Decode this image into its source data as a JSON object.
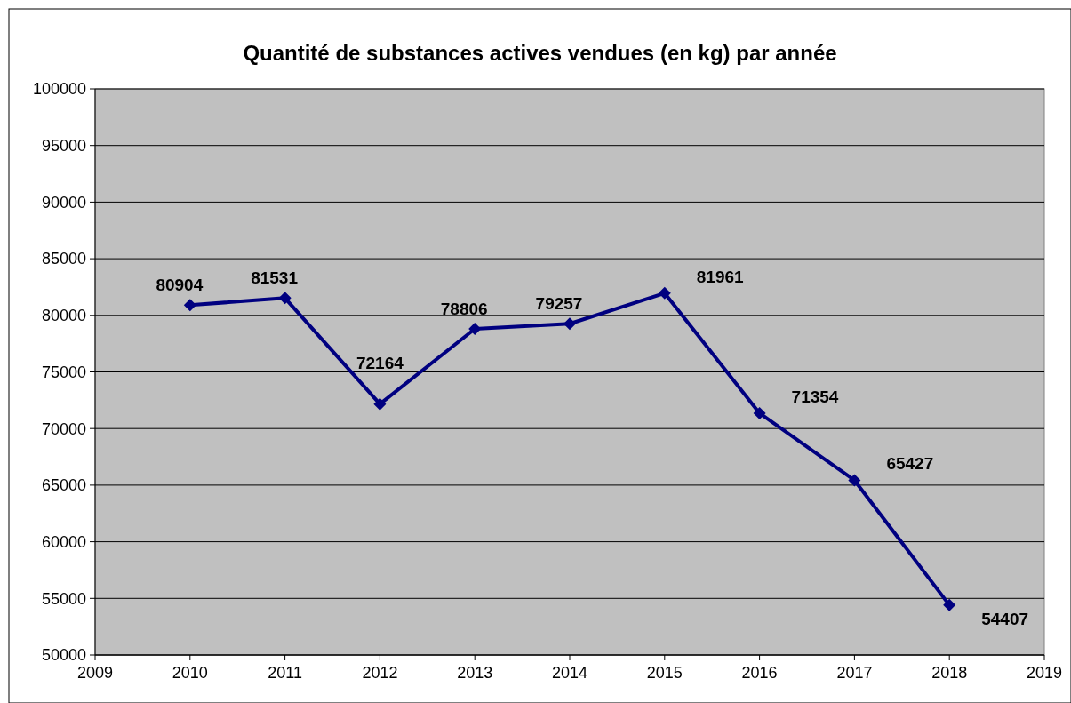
{
  "chart_data": {
    "type": "line",
    "title": "Quantité de substances actives vendues (en kg) par année",
    "x": [
      2010,
      2011,
      2012,
      2013,
      2014,
      2015,
      2016,
      2017,
      2018
    ],
    "series": [
      {
        "color": "#000080",
        "values": [
          80904,
          81531,
          72164,
          78806,
          79257,
          81961,
          71354,
          65427,
          54407
        ]
      }
    ],
    "xlim": [
      2009,
      2019
    ],
    "xticks": [
      2009,
      2010,
      2011,
      2012,
      2013,
      2014,
      2015,
      2016,
      2017,
      2018,
      2019
    ],
    "ylim": [
      50000,
      100000
    ],
    "yticks": [
      50000,
      55000,
      60000,
      65000,
      70000,
      75000,
      80000,
      85000,
      90000,
      95000,
      100000
    ],
    "grid": "y",
    "marker": "diamond",
    "line_style": "solid",
    "data_labels": true
  }
}
